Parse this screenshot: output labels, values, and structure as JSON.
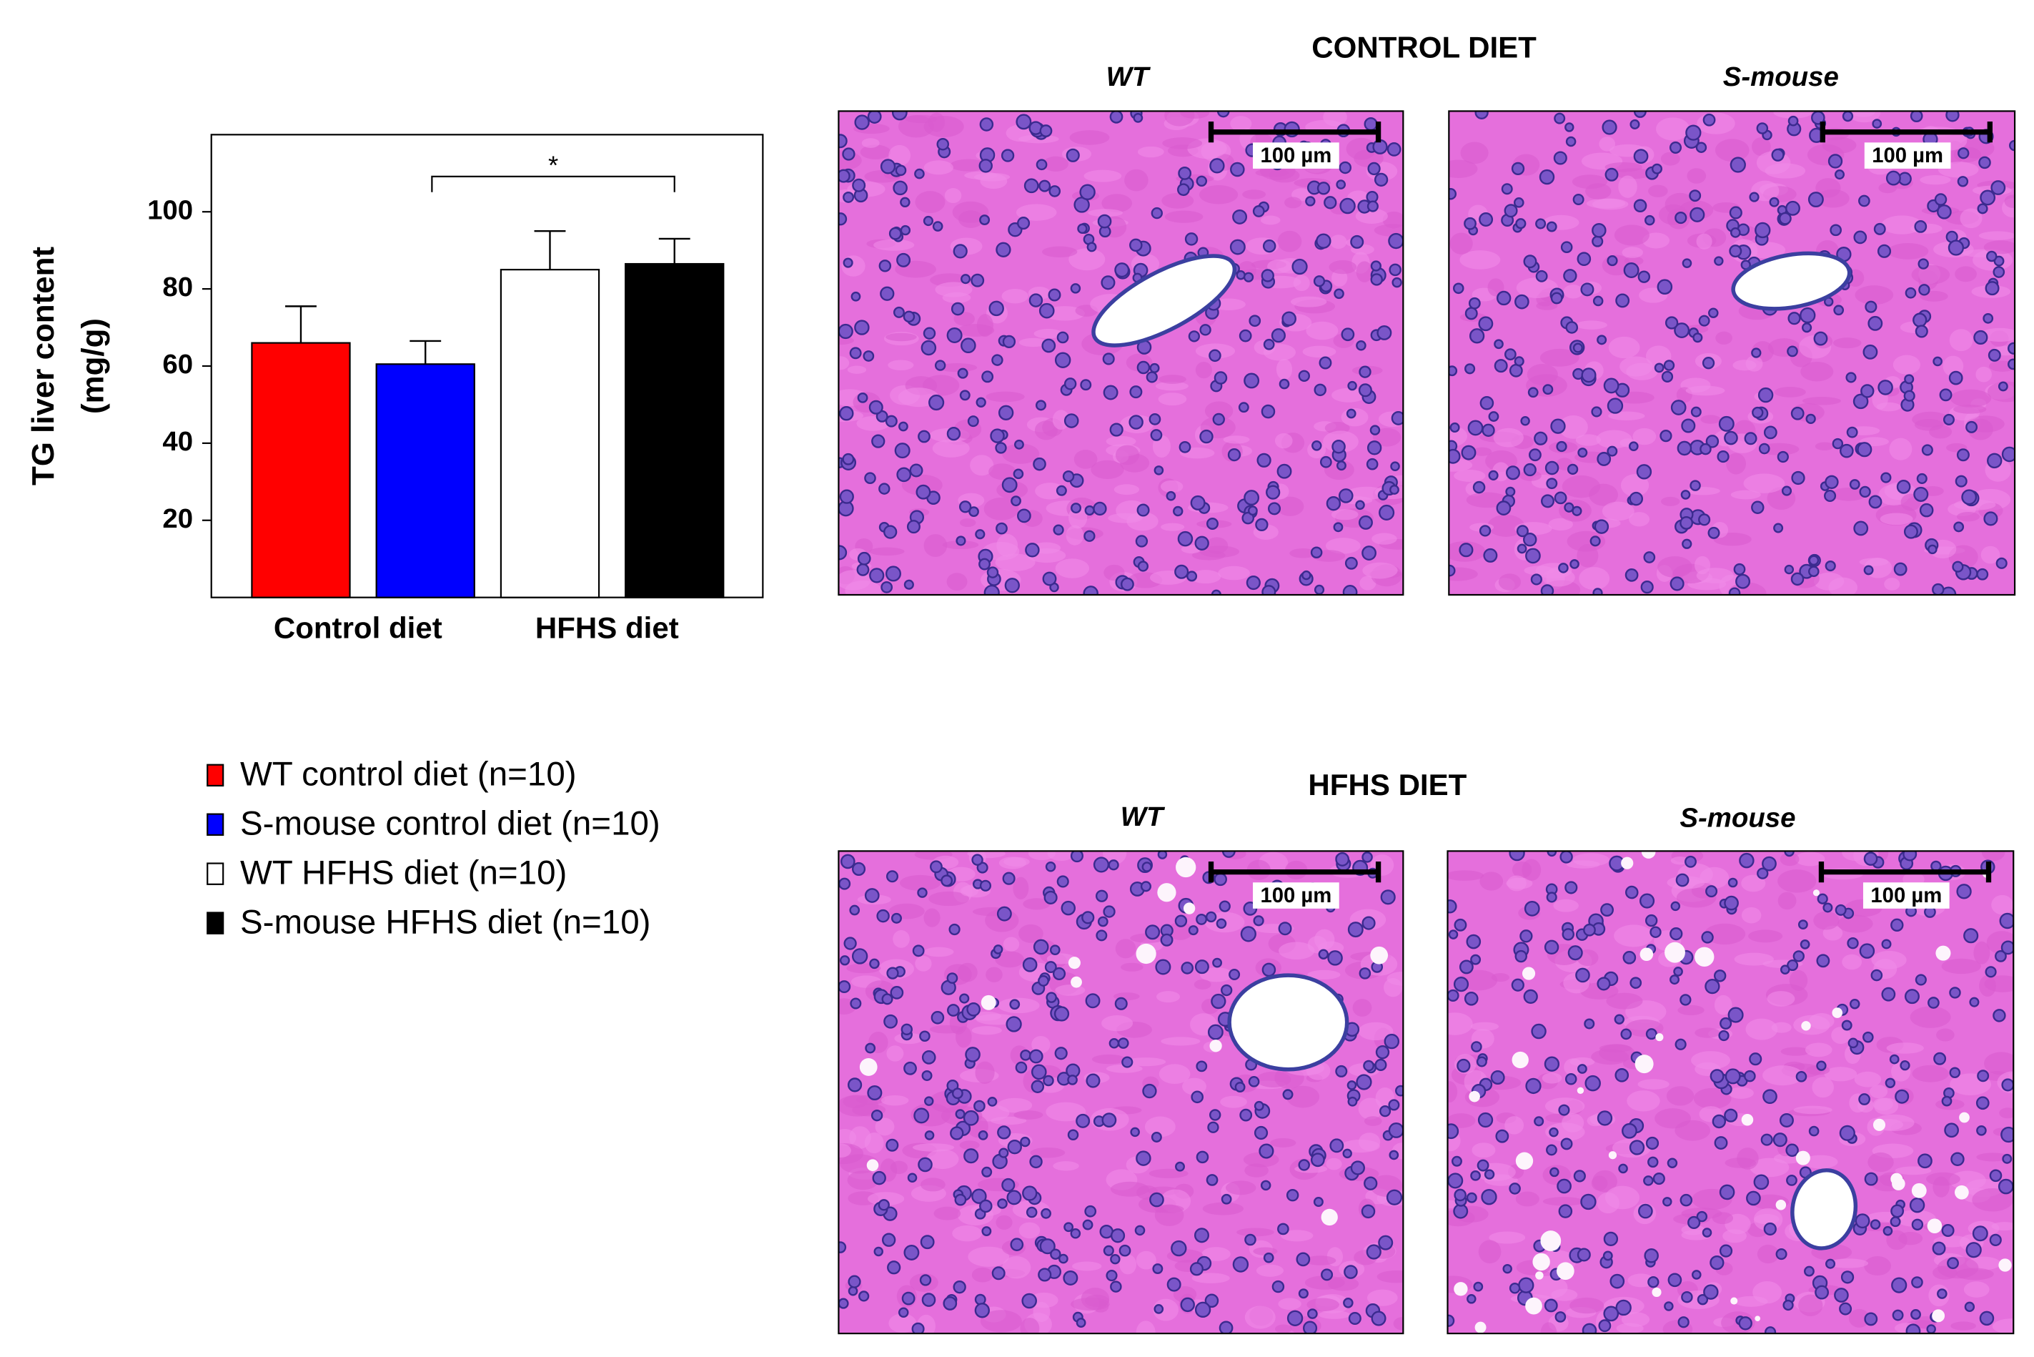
{
  "chart_data": {
    "type": "bar",
    "y_label": [
      "TG liver content",
      "(mg/g)"
    ],
    "categories": [
      "Control diet",
      "HFHS diet"
    ],
    "series": [
      {
        "name": "WT control diet (n=10)",
        "color": "#ff0000",
        "values": [
          66,
          null
        ],
        "errors": [
          9.5,
          null
        ]
      },
      {
        "name": "S-mouse control diet (n=10)",
        "color": "#0000ff",
        "values": [
          60.5,
          null
        ],
        "errors": [
          6,
          null
        ]
      },
      {
        "name": "WT HFHS diet (n=10)",
        "color": "#ffffff",
        "values": [
          null,
          85
        ],
        "errors": [
          null,
          10
        ]
      },
      {
        "name": "S-mouse HFHS diet (n=10)",
        "color": "#000000",
        "values": [
          null,
          86.5
        ],
        "errors": [
          null,
          6.5
        ]
      }
    ],
    "annotations": [
      "*"
    ],
    "ylim": [
      0,
      120
    ],
    "yticks": [
      20,
      40,
      60,
      80,
      100
    ],
    "grid": false
  },
  "micrographs": {
    "rows": [
      {
        "title": "CONTROL DIET",
        "panels": [
          {
            "label": "WT",
            "scale_bar": "100 µm"
          },
          {
            "label": "S-mouse",
            "scale_bar": "100 µm"
          }
        ]
      },
      {
        "title": "HFHS DIET",
        "panels": [
          {
            "label": "WT",
            "scale_bar": "100 µm"
          },
          {
            "label": "S-mouse",
            "scale_bar": "100 µm"
          }
        ]
      }
    ]
  }
}
